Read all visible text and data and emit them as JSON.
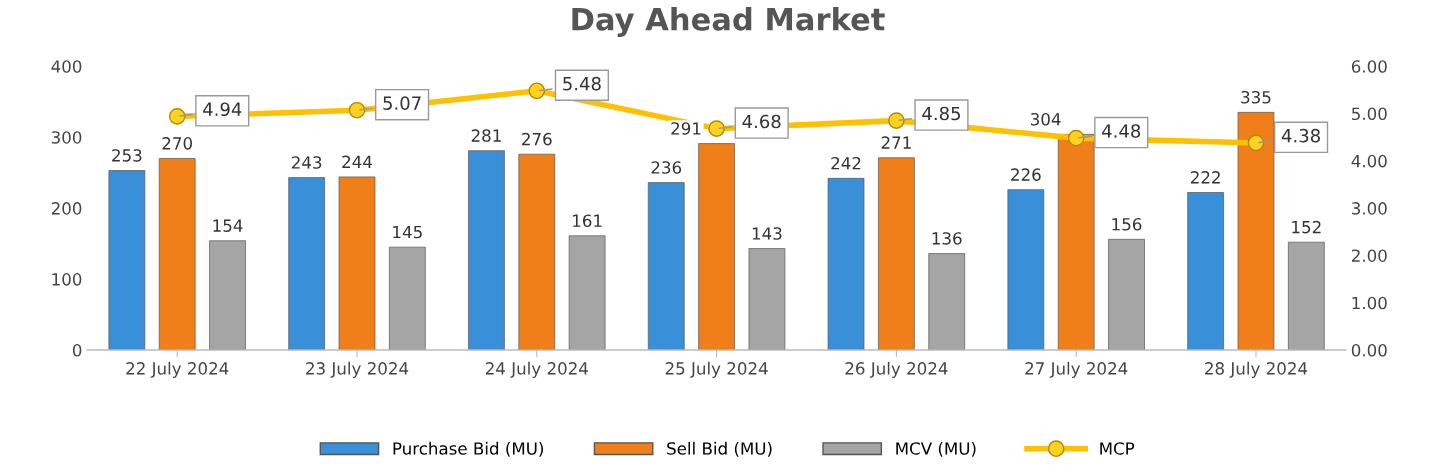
{
  "chart_data": {
    "type": "bar",
    "title": "Day Ahead Market",
    "categories": [
      "22 July 2024",
      "23 July 2024",
      "24 July 2024",
      "25 July 2024",
      "26 July 2024",
      "27 July 2024",
      "28 July 2024"
    ],
    "series": [
      {
        "name": "Purchase Bid (MU)",
        "color": "#3a8fd9",
        "values": [
          253,
          243,
          281,
          236,
          242,
          226,
          222
        ]
      },
      {
        "name": "Sell Bid (MU)",
        "color": "#f07f1a",
        "values": [
          270,
          244,
          276,
          291,
          271,
          304,
          335
        ]
      },
      {
        "name": "MCV (MU)",
        "color": "#a5a5a5",
        "values": [
          154,
          145,
          161,
          143,
          136,
          156,
          152
        ]
      },
      {
        "name": "MCP",
        "type": "line",
        "axis": "y2",
        "color": "#ffc000",
        "marker": "circle",
        "values": [
          4.94,
          5.07,
          5.48,
          4.68,
          4.85,
          4.48,
          4.38
        ]
      }
    ],
    "ylim": [
      0,
      400
    ],
    "yticks": [
      0,
      100,
      200,
      300,
      400
    ],
    "y2lim": [
      0,
      6
    ],
    "y2ticks": [
      {
        "value": 0,
        "label": "0.00"
      },
      {
        "value": 1,
        "label": "1.00"
      },
      {
        "value": 2,
        "label": "2.00"
      },
      {
        "value": 3,
        "label": "3.00"
      },
      {
        "value": 4,
        "label": "4.00"
      },
      {
        "value": 5,
        "label": "5.00"
      },
      {
        "value": 6,
        "label": "6.00"
      }
    ],
    "data_labels": true,
    "grid": false,
    "legend": "bottom"
  }
}
